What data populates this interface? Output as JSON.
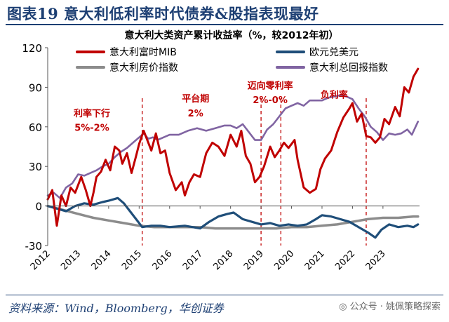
{
  "figure_title": "图表19  意大利低利率时代债券&股指表现最好",
  "source_text": "资料来源：Wind，Bloomberg，华创证券",
  "watermark_text": "公众号 · 姚佩策略探索",
  "colors": {
    "title": "#1d3f73",
    "mib": "#c00000",
    "fx": "#1f4e79",
    "house": "#8c8c8c",
    "bond": "#8064a2",
    "annot": "#c00000"
  },
  "chart_data": {
    "type": "line",
    "title": "意大利大类资产累计收益率（%，较2012年初）",
    "xlabel": "",
    "ylabel": "",
    "ylim": [
      -30,
      120
    ],
    "xlim": [
      2012,
      2024.2
    ],
    "yticks": [
      -30,
      0,
      30,
      60,
      90,
      120
    ],
    "xticks": [
      2012,
      2013,
      2014,
      2015,
      2016,
      2017,
      2018,
      2019,
      2020,
      2021,
      2022,
      2023
    ],
    "legend": [
      "意大利富时MIB",
      "欧元兑美元",
      "意大利房价指数",
      "意大利总回报指数"
    ],
    "legend_position": "top",
    "series": [
      {
        "name": "意大利富时MIB",
        "key": "mib",
        "x": [
          2012.0,
          2012.15,
          2012.3,
          2012.45,
          2012.6,
          2012.75,
          2012.9,
          2013.1,
          2013.25,
          2013.4,
          2013.5,
          2013.6,
          2013.75,
          2013.9,
          2014.05,
          2014.2,
          2014.35,
          2014.45,
          2014.6,
          2014.75,
          2014.9,
          2015.0,
          2015.15,
          2015.3,
          2015.4,
          2015.55,
          2015.7,
          2015.85,
          2016.0,
          2016.2,
          2016.4,
          2016.5,
          2016.65,
          2016.8,
          2017.0,
          2017.2,
          2017.4,
          2017.6,
          2017.8,
          2018.0,
          2018.2,
          2018.35,
          2018.5,
          2018.65,
          2018.8,
          2018.95,
          2019.1,
          2019.3,
          2019.45,
          2019.6,
          2019.75,
          2019.9,
          2020.1,
          2020.2,
          2020.4,
          2020.6,
          2020.8,
          2020.95,
          2021.1,
          2021.3,
          2021.5,
          2021.7,
          2021.9,
          2022.0,
          2022.15,
          2022.3,
          2022.45,
          2022.6,
          2022.75,
          2022.9,
          2023.05,
          2023.2,
          2023.4,
          2023.55,
          2023.7,
          2023.85,
          2024.0,
          2024.15
        ],
        "values": [
          5,
          12,
          -15,
          8,
          0,
          14,
          10,
          22,
          12,
          0,
          10,
          22,
          26,
          35,
          27,
          45,
          42,
          32,
          40,
          25,
          38,
          47,
          57,
          48,
          42,
          55,
          40,
          42,
          25,
          12,
          18,
          8,
          18,
          24,
          22,
          40,
          48,
          45,
          38,
          54,
          45,
          57,
          38,
          32,
          18,
          22,
          30,
          45,
          37,
          42,
          48,
          44,
          50,
          35,
          14,
          10,
          13,
          28,
          36,
          42,
          56,
          67,
          74,
          78,
          64,
          70,
          53,
          52,
          48,
          52,
          66,
          62,
          75,
          68,
          90,
          86,
          98,
          104
        ]
      },
      {
        "name": "欧元兑美元",
        "key": "fx",
        "x": [
          2012.0,
          2012.3,
          2012.6,
          2012.9,
          2013.2,
          2013.5,
          2013.8,
          2014.0,
          2014.3,
          2014.5,
          2014.7,
          2014.9,
          2015.1,
          2015.4,
          2015.7,
          2016.0,
          2016.5,
          2017.0,
          2017.3,
          2017.6,
          2017.9,
          2018.1,
          2018.4,
          2018.7,
          2019.0,
          2019.3,
          2019.6,
          2019.9,
          2020.2,
          2020.5,
          2020.8,
          2021.0,
          2021.3,
          2021.6,
          2021.9,
          2022.2,
          2022.5,
          2022.75,
          2022.95,
          2023.2,
          2023.5,
          2023.8,
          2024.0,
          2024.15
        ],
        "values": [
          0,
          -2,
          -4,
          0,
          2,
          1,
          3,
          4,
          6,
          2,
          -4,
          -10,
          -16,
          -15,
          -15,
          -16,
          -15,
          -17,
          -12,
          -8,
          -6,
          -5,
          -10,
          -12,
          -14,
          -13,
          -15,
          -14,
          -15,
          -14,
          -10,
          -7,
          -8,
          -10,
          -12,
          -16,
          -20,
          -24,
          -18,
          -14,
          -16,
          -15,
          -16,
          -14
        ]
      },
      {
        "name": "意大利房价指数",
        "key": "house",
        "x": [
          2012.0,
          2012.5,
          2013.0,
          2013.5,
          2014.0,
          2014.5,
          2015.0,
          2015.5,
          2016.0,
          2016.5,
          2017.0,
          2017.5,
          2018.0,
          2018.5,
          2019.0,
          2019.5,
          2020.0,
          2020.5,
          2021.0,
          2021.5,
          2022.0,
          2022.5,
          2023.0,
          2023.5,
          2024.0,
          2024.15
        ],
        "values": [
          0,
          -3,
          -6,
          -9,
          -11,
          -13,
          -15,
          -16,
          -16,
          -16,
          -16,
          -17,
          -17,
          -17,
          -17,
          -17,
          -16,
          -16,
          -15,
          -14,
          -12,
          -10,
          -9,
          -9,
          -8,
          -8
        ]
      },
      {
        "name": "意大利总回报指数",
        "key": "bond",
        "x": [
          2012.0,
          2012.2,
          2012.4,
          2012.6,
          2012.8,
          2013.0,
          2013.2,
          2013.4,
          2013.6,
          2013.8,
          2014.0,
          2014.2,
          2014.4,
          2014.6,
          2014.8,
          2015.0,
          2015.15,
          2015.3,
          2015.45,
          2015.6,
          2015.8,
          2016.0,
          2016.3,
          2016.6,
          2016.9,
          2017.2,
          2017.5,
          2017.8,
          2018.0,
          2018.2,
          2018.4,
          2018.6,
          2018.8,
          2019.0,
          2019.2,
          2019.4,
          2019.6,
          2019.8,
          2020.0,
          2020.2,
          2020.4,
          2020.6,
          2020.8,
          2021.0,
          2021.2,
          2021.4,
          2021.6,
          2021.8,
          2022.0,
          2022.2,
          2022.4,
          2022.6,
          2022.8,
          2023.0,
          2023.2,
          2023.4,
          2023.6,
          2023.8,
          2023.95,
          2024.15
        ],
        "values": [
          8,
          10,
          6,
          14,
          17,
          24,
          23,
          25,
          27,
          30,
          32,
          37,
          41,
          44,
          48,
          52,
          55,
          51,
          52,
          50,
          52,
          54,
          54,
          57,
          59,
          57,
          59,
          61,
          61,
          59,
          62,
          56,
          50,
          50,
          58,
          62,
          68,
          74,
          76,
          78,
          76,
          80,
          80,
          80,
          82,
          83,
          84,
          83,
          81,
          74,
          68,
          60,
          56,
          50,
          55,
          54,
          55,
          58,
          54,
          64
        ]
      }
    ],
    "vlines": [
      2015.1,
      2019.0,
      2019.65,
      2022.45
    ],
    "annotations": [
      {
        "text": "利率下行",
        "x": 2013.45,
        "y": 68
      },
      {
        "text": "5%-2%",
        "x": 2013.45,
        "y": 57
      },
      {
        "text": "平台期",
        "x": 2016.85,
        "y": 79
      },
      {
        "text": "2%",
        "x": 2016.85,
        "y": 68
      },
      {
        "text": "迈向零利率",
        "x": 2019.3,
        "y": 89
      },
      {
        "text": "2%-0%",
        "x": 2019.3,
        "y": 78
      },
      {
        "text": "负利率",
        "x": 2021.4,
        "y": 82
      }
    ]
  }
}
